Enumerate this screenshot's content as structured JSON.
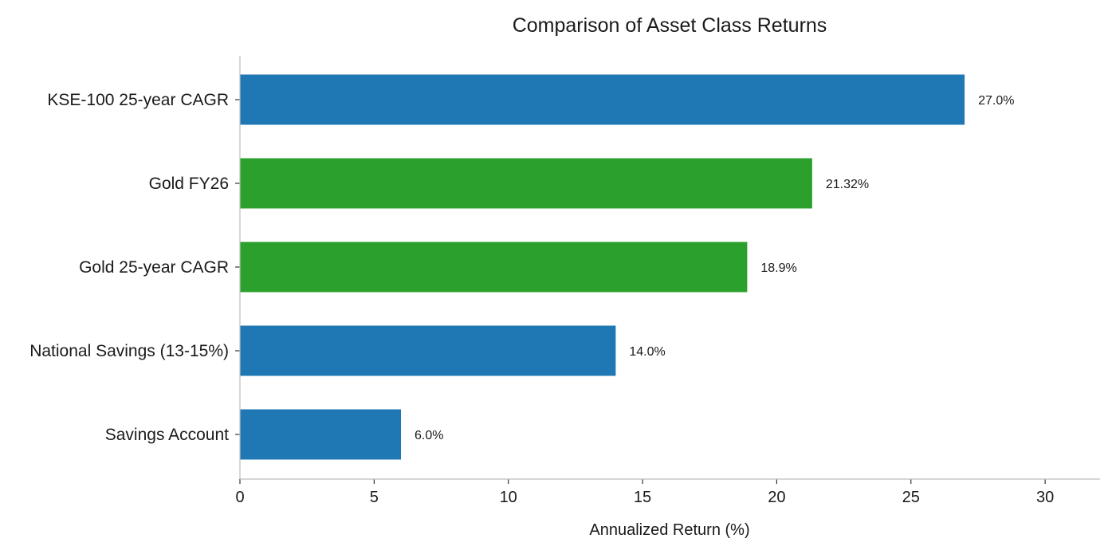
{
  "chart_data": {
    "type": "bar",
    "orientation": "horizontal",
    "title": "Comparison of Asset Class Returns",
    "xlabel": "Annualized Return (%)",
    "ylabel": "",
    "xlim": [
      0,
      32
    ],
    "x_ticks": [
      0,
      5,
      10,
      15,
      20,
      25,
      30
    ],
    "x_tick_labels": [
      "0",
      "5",
      "10",
      "15",
      "20",
      "25",
      "30"
    ],
    "grid": false,
    "categories": [
      "KSE-100 25-year CAGR",
      "Gold FY26",
      "Gold 25-year CAGR",
      "National Savings (13-15%)",
      "Savings Account"
    ],
    "values": [
      27.0,
      21.32,
      18.9,
      14.0,
      6.0
    ],
    "data_labels": [
      "27.0%",
      "21.32%",
      "18.9%",
      "14.0%",
      "6.0%"
    ],
    "bar_colors": [
      "#1f77b4",
      "#2ca02c",
      "#2ca02c",
      "#1f77b4",
      "#1f77b4"
    ]
  }
}
